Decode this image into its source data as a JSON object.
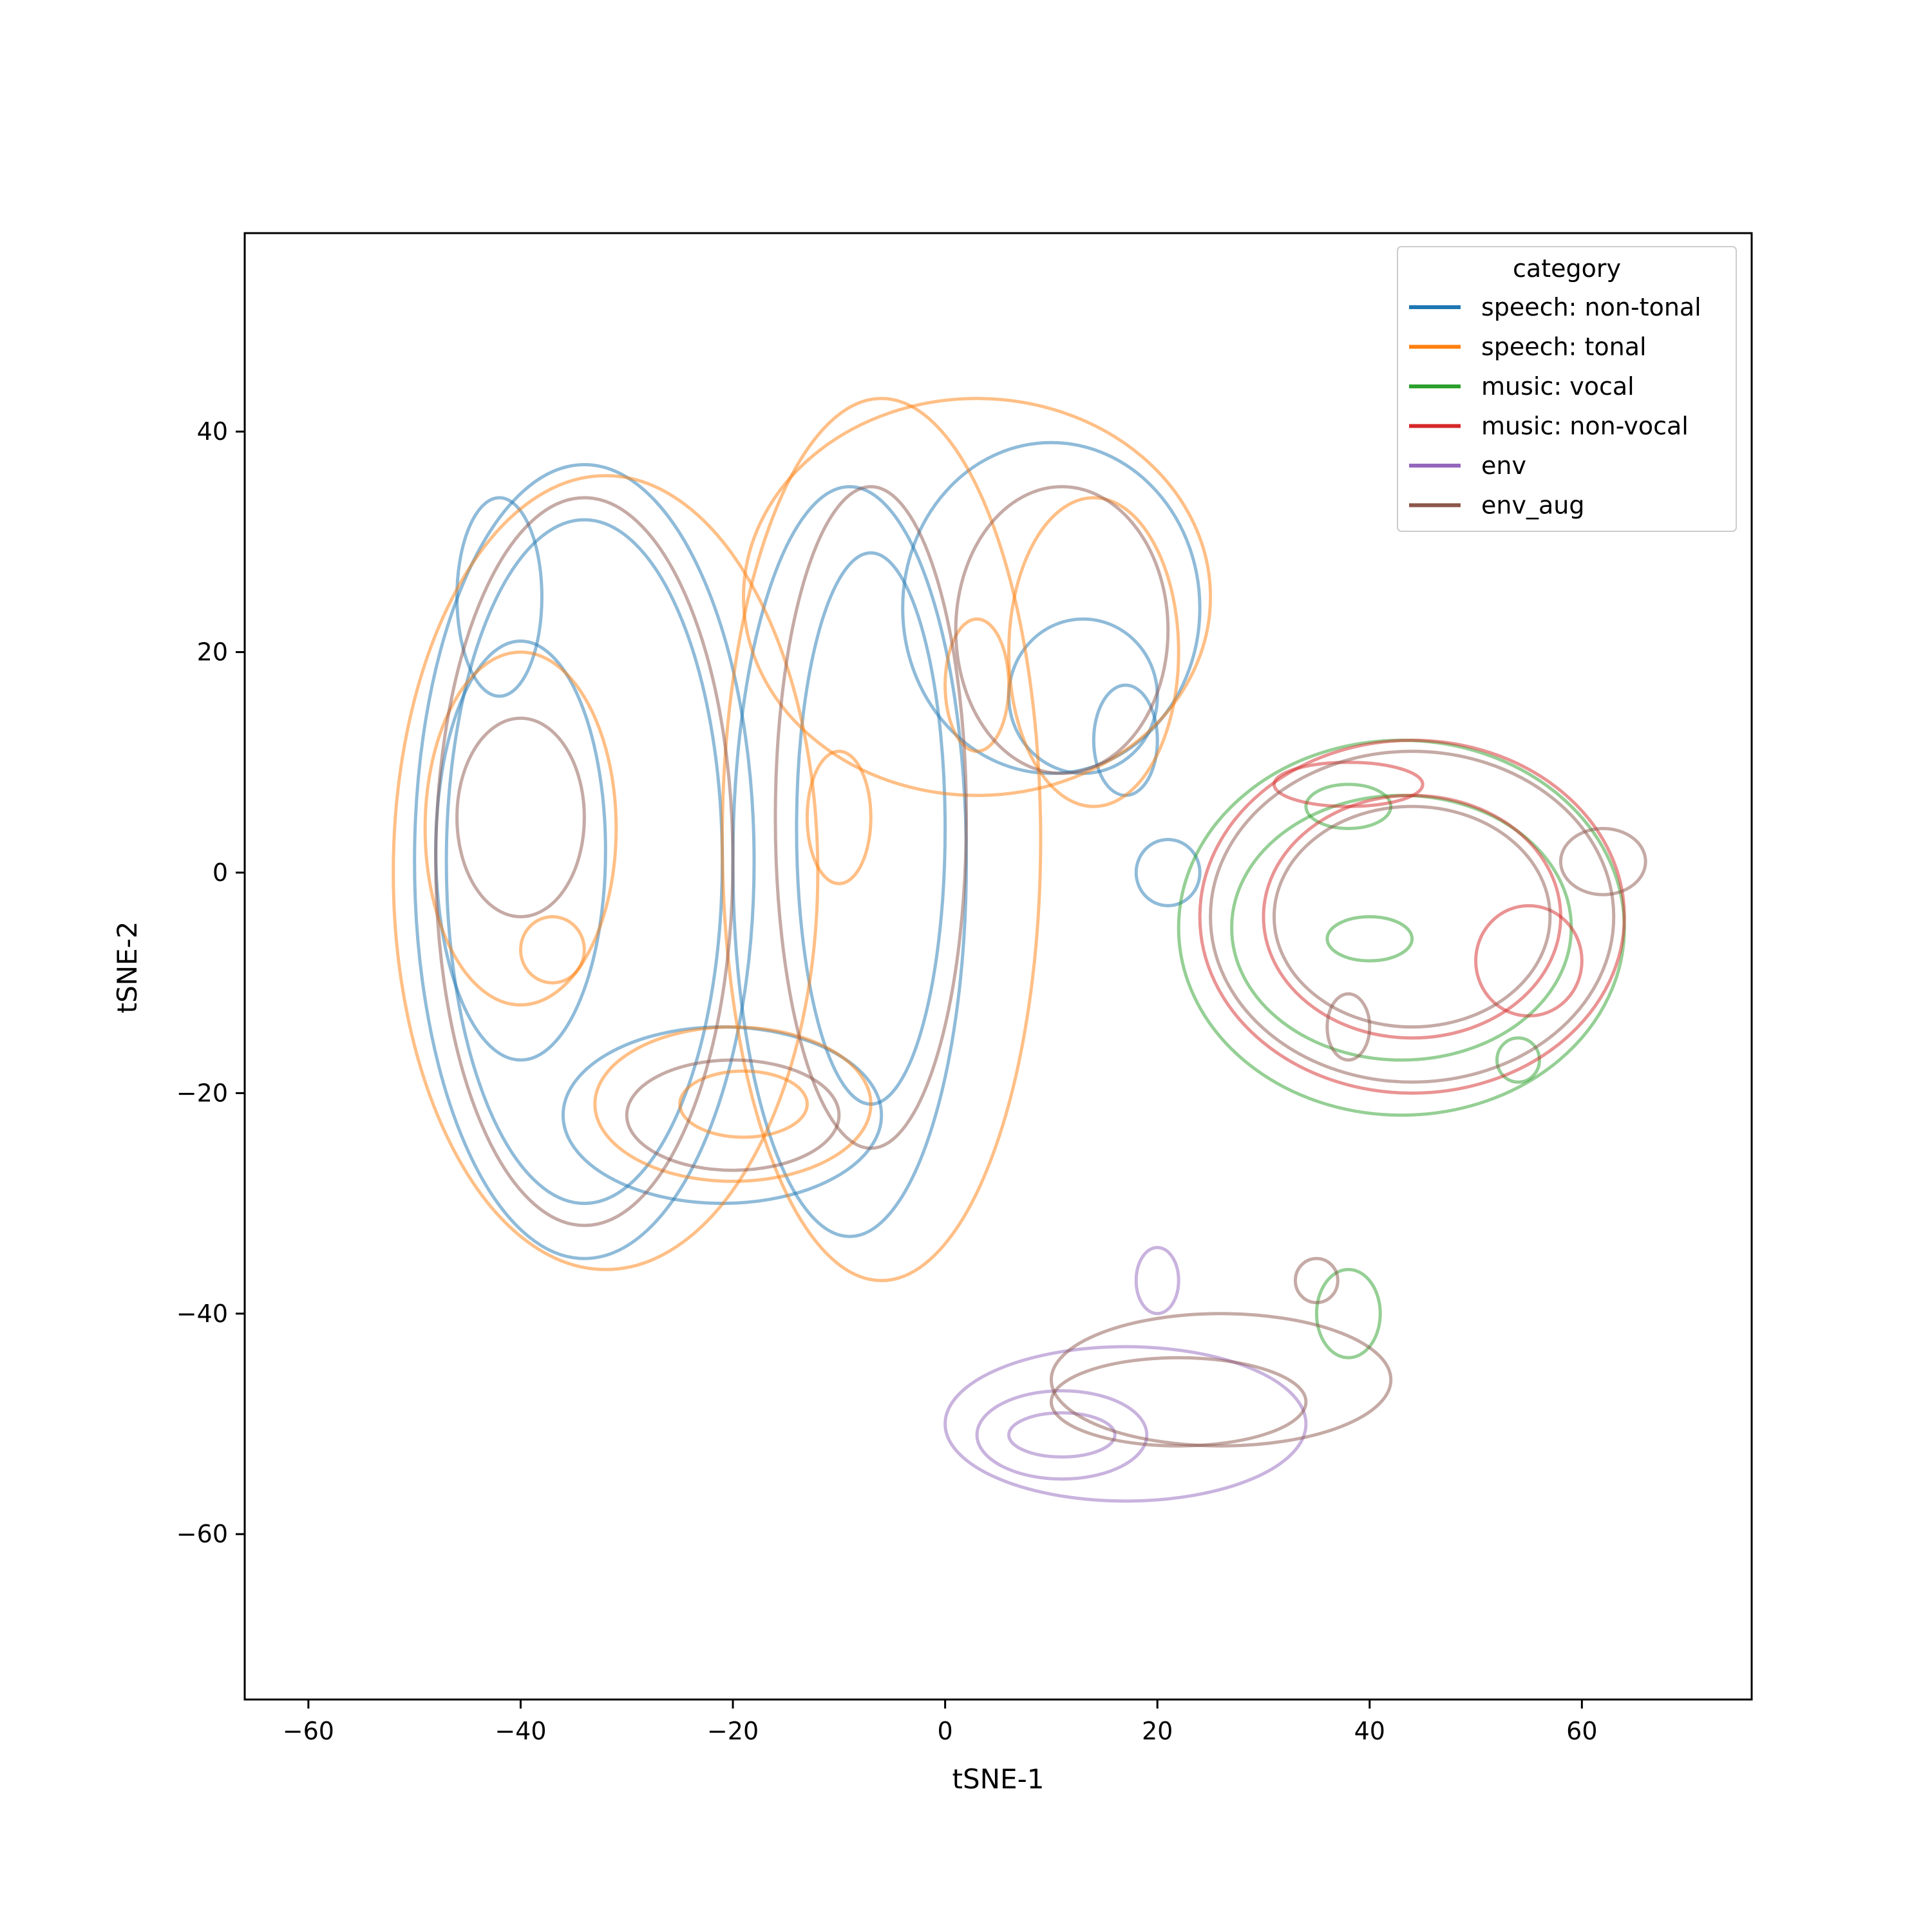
{
  "chart_data": {
    "type": "contour",
    "xlabel": "tSNE-1",
    "ylabel": "tSNE-2",
    "xlim": [
      -66,
      76
    ],
    "ylim": [
      -75,
      58
    ],
    "x_ticks": [
      -60,
      -40,
      -20,
      0,
      20,
      40,
      60
    ],
    "y_ticks": [
      -60,
      -40,
      -20,
      0,
      20,
      40
    ],
    "grid": false,
    "legend": {
      "title": "category",
      "placement": "top-right"
    },
    "series": [
      {
        "name": "speech: non-tonal",
        "color": "#1f77b4",
        "levels": [
          {
            "cx": -34,
            "cy": 1,
            "rx": 16,
            "ry": 36
          },
          {
            "cx": -34,
            "cy": 1,
            "rx": 13,
            "ry": 31
          },
          {
            "cx": -40,
            "cy": 2,
            "rx": 8,
            "ry": 19
          },
          {
            "cx": -42,
            "cy": 25,
            "rx": 4,
            "ry": 9
          },
          {
            "cx": -21,
            "cy": -22,
            "rx": 15,
            "ry": 8
          },
          {
            "cx": -9,
            "cy": 1,
            "rx": 11,
            "ry": 34
          },
          {
            "cx": -7,
            "cy": 4,
            "rx": 7,
            "ry": 25
          },
          {
            "cx": 10,
            "cy": 24,
            "rx": 14,
            "ry": 15
          },
          {
            "cx": 13,
            "cy": 16,
            "rx": 7,
            "ry": 7
          },
          {
            "cx": 17,
            "cy": 12,
            "rx": 3,
            "ry": 5
          },
          {
            "cx": 21,
            "cy": 0,
            "rx": 3,
            "ry": 3
          }
        ]
      },
      {
        "name": "speech: tonal",
        "color": "#ff7f0e",
        "levels": [
          {
            "cx": -32,
            "cy": 0,
            "rx": 20,
            "ry": 36
          },
          {
            "cx": -40,
            "cy": 4,
            "rx": 9,
            "ry": 16
          },
          {
            "cx": -37,
            "cy": -7,
            "rx": 3,
            "ry": 3
          },
          {
            "cx": -20,
            "cy": -21,
            "rx": 13,
            "ry": 7
          },
          {
            "cx": -19,
            "cy": -21,
            "rx": 6,
            "ry": 3
          },
          {
            "cx": -6,
            "cy": 3,
            "rx": 15,
            "ry": 40
          },
          {
            "cx": 3,
            "cy": 25,
            "rx": 22,
            "ry": 18
          },
          {
            "cx": 3,
            "cy": 17,
            "rx": 3,
            "ry": 6
          },
          {
            "cx": 14,
            "cy": 20,
            "rx": 8,
            "ry": 14
          },
          {
            "cx": -10,
            "cy": 5,
            "rx": 3,
            "ry": 6
          }
        ]
      },
      {
        "name": "music: vocal",
        "color": "#2ca02c",
        "levels": [
          {
            "cx": 43,
            "cy": -5,
            "rx": 21,
            "ry": 17
          },
          {
            "cx": 43,
            "cy": -5,
            "rx": 16,
            "ry": 12
          },
          {
            "cx": 38,
            "cy": 6,
            "rx": 4,
            "ry": 2
          },
          {
            "cx": 40,
            "cy": -6,
            "rx": 4,
            "ry": 2
          },
          {
            "cx": 54,
            "cy": -17,
            "rx": 2,
            "ry": 2
          },
          {
            "cx": 38,
            "cy": -40,
            "rx": 3,
            "ry": 4
          }
        ]
      },
      {
        "name": "music: non-vocal",
        "color": "#d62728",
        "levels": [
          {
            "cx": 44,
            "cy": -4,
            "rx": 20,
            "ry": 16
          },
          {
            "cx": 44,
            "cy": -4,
            "rx": 14,
            "ry": 11
          },
          {
            "cx": 38,
            "cy": 8,
            "rx": 7,
            "ry": 2
          },
          {
            "cx": 55,
            "cy": -8,
            "rx": 5,
            "ry": 5
          }
        ]
      },
      {
        "name": "env",
        "color": "#9467bd",
        "levels": [
          {
            "cx": 17,
            "cy": -50,
            "rx": 17,
            "ry": 7
          },
          {
            "cx": 11,
            "cy": -51,
            "rx": 8,
            "ry": 4
          },
          {
            "cx": 11,
            "cy": -51,
            "rx": 5,
            "ry": 2
          },
          {
            "cx": 20,
            "cy": -37,
            "rx": 2,
            "ry": 3
          }
        ]
      },
      {
        "name": "env_aug",
        "color": "#8c564b",
        "levels": [
          {
            "cx": -34,
            "cy": 1,
            "rx": 14,
            "ry": 33
          },
          {
            "cx": -40,
            "cy": 5,
            "rx": 6,
            "ry": 9
          },
          {
            "cx": -20,
            "cy": -22,
            "rx": 10,
            "ry": 5
          },
          {
            "cx": -7,
            "cy": 5,
            "rx": 9,
            "ry": 30
          },
          {
            "cx": 11,
            "cy": 22,
            "rx": 10,
            "ry": 13
          },
          {
            "cx": 44,
            "cy": -4,
            "rx": 19,
            "ry": 15
          },
          {
            "cx": 44,
            "cy": -4,
            "rx": 13,
            "ry": 10
          },
          {
            "cx": 62,
            "cy": 1,
            "rx": 4,
            "ry": 3
          },
          {
            "cx": 38,
            "cy": -14,
            "rx": 2,
            "ry": 3
          },
          {
            "cx": 26,
            "cy": -46,
            "rx": 16,
            "ry": 6
          },
          {
            "cx": 22,
            "cy": -48,
            "rx": 12,
            "ry": 4
          },
          {
            "cx": 35,
            "cy": -37,
            "rx": 2,
            "ry": 2
          }
        ]
      }
    ]
  }
}
